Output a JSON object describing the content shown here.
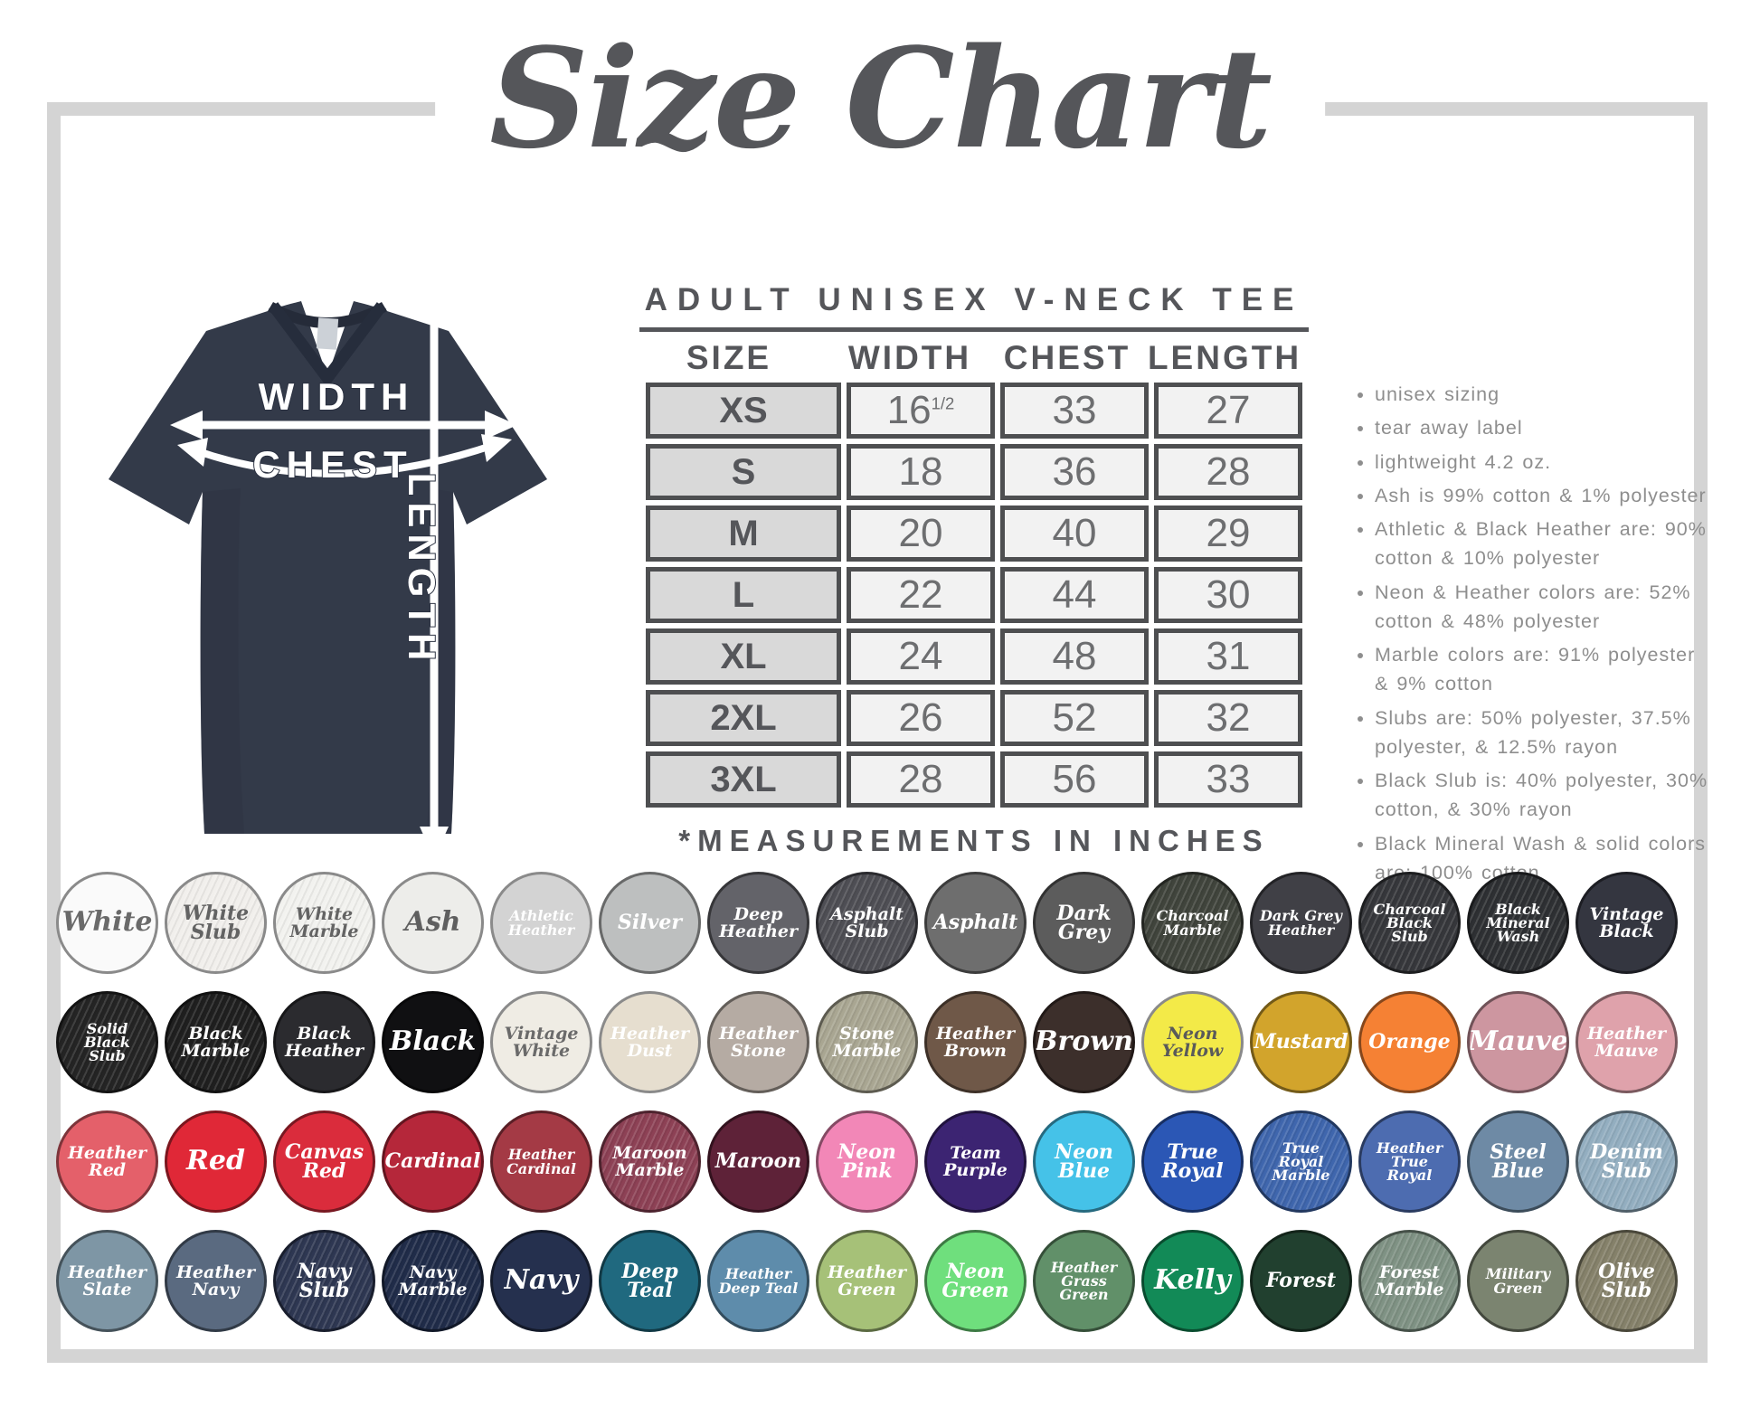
{
  "title": "Size Chart",
  "shirt": {
    "width_label": "WIDTH",
    "chest_label": "CHEST",
    "length_label": "LENGTH",
    "fabric_color": "#333a49"
  },
  "size_table": {
    "heading": "ADULT UNISEX V-NECK TEE",
    "columns": [
      "SIZE",
      "WIDTH",
      "CHEST",
      "LENGTH"
    ],
    "rows": [
      {
        "size": "XS",
        "width": "16",
        "width_sup": "1/2",
        "chest": "33",
        "length": "27"
      },
      {
        "size": "S",
        "width": "18",
        "chest": "36",
        "length": "28"
      },
      {
        "size": "M",
        "width": "20",
        "chest": "40",
        "length": "29"
      },
      {
        "size": "L",
        "width": "22",
        "chest": "44",
        "length": "30"
      },
      {
        "size": "XL",
        "width": "24",
        "chest": "48",
        "length": "31"
      },
      {
        "size": "2XL",
        "width": "26",
        "chest": "52",
        "length": "32"
      },
      {
        "size": "3XL",
        "width": "28",
        "chest": "56",
        "length": "33"
      }
    ],
    "footnote": "*MEASUREMENTS IN INCHES"
  },
  "notes": [
    "unisex sizing",
    "tear away label",
    "lightweight 4.2 oz.",
    "Ash is 99% cotton & 1% polyester",
    "Athletic & Black Heather are: 90% cotton & 10% polyester",
    "Neon & Heather colors are: 52% cotton & 48% polyester",
    "Marble colors are: 91% polyester & 9% cotton",
    "Slubs are: 50% polyester, 37.5% polyester, & 12.5% rayon",
    "Black Slub is: 40% polyester, 30% cotton, & 30% rayon",
    "Black Mineral Wash & solid colors are: 100% cotton"
  ],
  "swatch_rows": [
    [
      {
        "name": "White",
        "color": "#fafafa",
        "text": "#6a6a6a"
      },
      {
        "name": "White Slub",
        "color": "#f1efec",
        "text": "#636363"
      },
      {
        "name": "White Marble",
        "color": "#f2f2ef",
        "text": "#636363"
      },
      {
        "name": "Ash",
        "color": "#ededea",
        "text": "#5f5f5f"
      },
      {
        "name": "Athletic Heather",
        "color": "#d3d3d3",
        "text": "#ffffff"
      },
      {
        "name": "Silver",
        "color": "#bdbfbf",
        "text": "#ffffff"
      },
      {
        "name": "Deep Heather",
        "color": "#636369",
        "text": "#ffffff"
      },
      {
        "name": "Asphalt Slub",
        "color": "#4e4e54",
        "text": "#ffffff"
      },
      {
        "name": "Asphalt",
        "color": "#6e6e6e",
        "text": "#ffffff"
      },
      {
        "name": "Dark Grey",
        "color": "#5c5c5c",
        "text": "#ffffff"
      },
      {
        "name": "Charcoal Marble",
        "color": "#40443c",
        "text": "#ffffff"
      },
      {
        "name": "Dark Grey Heather",
        "color": "#404046",
        "text": "#ffffff"
      },
      {
        "name": "Charcoal Black Slub",
        "color": "#36373b",
        "text": "#ffffff"
      },
      {
        "name": "Black Mineral Wash",
        "color": "#2e3033",
        "text": "#ffffff"
      },
      {
        "name": "Vintage Black",
        "color": "#343640",
        "text": "#ffffff"
      }
    ],
    [
      {
        "name": "Solid Black Slub",
        "color": "#242424",
        "text": "#ffffff"
      },
      {
        "name": "Black Marble",
        "color": "#1f1f1f",
        "text": "#ffffff"
      },
      {
        "name": "Black Heather",
        "color": "#2b2b2f",
        "text": "#ffffff"
      },
      {
        "name": "Black",
        "color": "#101012",
        "text": "#ffffff"
      },
      {
        "name": "Vintage White",
        "color": "#efece4",
        "text": "#6a6a6a"
      },
      {
        "name": "Heather Dust",
        "color": "#e6decf",
        "text": "#ffffff"
      },
      {
        "name": "Heather Stone",
        "color": "#b5aba3",
        "text": "#ffffff"
      },
      {
        "name": "Stone Marble",
        "color": "#a9a692",
        "text": "#ffffff"
      },
      {
        "name": "Heather Brown",
        "color": "#6f5848",
        "text": "#ffffff"
      },
      {
        "name": "Brown",
        "color": "#3c2f2b",
        "text": "#ffffff"
      },
      {
        "name": "Neon Yellow",
        "color": "#f3ea48",
        "text": "#5a5a5a"
      },
      {
        "name": "Mustard",
        "color": "#d2a42c",
        "text": "#ffffff"
      },
      {
        "name": "Orange",
        "color": "#f58134",
        "text": "#ffffff"
      },
      {
        "name": "Mauve",
        "color": "#cd96a0",
        "text": "#ffffff"
      },
      {
        "name": "Heather Mauve",
        "color": "#dfa2ab",
        "text": "#ffffff"
      }
    ],
    [
      {
        "name": "Heather Red",
        "color": "#e4606a",
        "text": "#ffffff"
      },
      {
        "name": "Red",
        "color": "#e02837",
        "text": "#ffffff"
      },
      {
        "name": "Canvas Red",
        "color": "#da2c3c",
        "text": "#ffffff"
      },
      {
        "name": "Cardinal",
        "color": "#b5273a",
        "text": "#ffffff"
      },
      {
        "name": "Heather Cardinal",
        "color": "#a43a45",
        "text": "#ffffff"
      },
      {
        "name": "Maroon Marble",
        "color": "#8d4155",
        "text": "#ffffff"
      },
      {
        "name": "Maroon",
        "color": "#5e2238",
        "text": "#ffffff"
      },
      {
        "name": "Neon Pink",
        "color": "#f287b7",
        "text": "#ffffff"
      },
      {
        "name": "Team Purple",
        "color": "#3c2472",
        "text": "#ffffff"
      },
      {
        "name": "Neon Blue",
        "color": "#45c2e8",
        "text": "#ffffff"
      },
      {
        "name": "True Royal",
        "color": "#2b57b5",
        "text": "#ffffff"
      },
      {
        "name": "True Royal Marble",
        "color": "#3f66ad",
        "text": "#ffffff"
      },
      {
        "name": "Heather True Royal",
        "color": "#4d6cb0",
        "text": "#ffffff"
      },
      {
        "name": "Steel Blue",
        "color": "#6e8aa5",
        "text": "#ffffff"
      },
      {
        "name": "Denim Slub",
        "color": "#93aec0",
        "text": "#ffffff"
      }
    ],
    [
      {
        "name": "Heather Slate",
        "color": "#7e96a5",
        "text": "#ffffff"
      },
      {
        "name": "Heather Navy",
        "color": "#5a6a80",
        "text": "#ffffff"
      },
      {
        "name": "Navy Slub",
        "color": "#2e3752",
        "text": "#ffffff"
      },
      {
        "name": "Navy Marble",
        "color": "#202c49",
        "text": "#ffffff"
      },
      {
        "name": "Navy",
        "color": "#25304e",
        "text": "#ffffff"
      },
      {
        "name": "Deep Teal",
        "color": "#20697f",
        "text": "#ffffff"
      },
      {
        "name": "Heather Deep Teal",
        "color": "#5e8cab",
        "text": "#ffffff"
      },
      {
        "name": "Heather Green",
        "color": "#a6c178",
        "text": "#ffffff"
      },
      {
        "name": "Neon Green",
        "color": "#6fdf7d",
        "text": "#ffffff"
      },
      {
        "name": "Heather Grass Green",
        "color": "#619069",
        "text": "#ffffff"
      },
      {
        "name": "Kelly",
        "color": "#128a57",
        "text": "#ffffff"
      },
      {
        "name": "Forest",
        "color": "#21402f",
        "text": "#ffffff"
      },
      {
        "name": "Forest Marble",
        "color": "#7f9284",
        "text": "#ffffff"
      },
      {
        "name": "Military Green",
        "color": "#7b8470",
        "text": "#ffffff"
      },
      {
        "name": "Olive Slub",
        "color": "#85816a",
        "text": "#ffffff"
      }
    ]
  ],
  "colors": {
    "frame": "#d4d4d4",
    "heading_text": "#55565a",
    "table_border": "#4e4f51",
    "size_cell_bg": "#d9d9d9",
    "value_cell_bg": "#f2f2f2",
    "notes_text": "#8e8e8e",
    "shirt_navy": "#333a49"
  }
}
